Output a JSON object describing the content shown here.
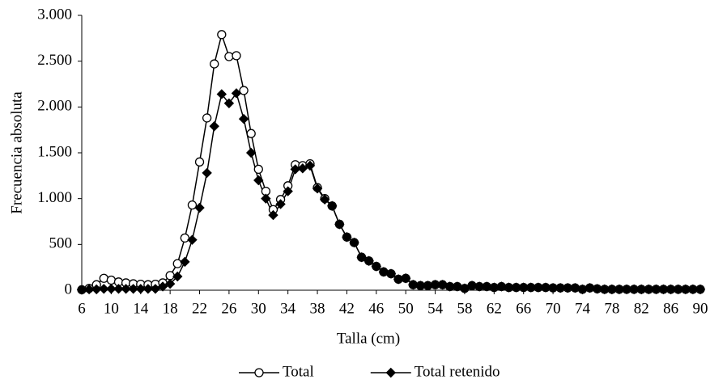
{
  "chart_data": {
    "type": "line",
    "x_label": "Talla (cm)",
    "y_label": "Frecuencia absoluta",
    "x": [
      6,
      7,
      8,
      9,
      10,
      11,
      12,
      13,
      14,
      15,
      16,
      17,
      18,
      19,
      20,
      21,
      22,
      23,
      24,
      25,
      26,
      27,
      28,
      29,
      30,
      31,
      32,
      33,
      34,
      35,
      36,
      37,
      38,
      39,
      40,
      41,
      42,
      43,
      44,
      45,
      46,
      47,
      48,
      49,
      50,
      51,
      52,
      53,
      54,
      55,
      56,
      57,
      58,
      59,
      60,
      61,
      62,
      63,
      64,
      65,
      66,
      67,
      68,
      69,
      70,
      71,
      72,
      73,
      74,
      75,
      76,
      77,
      78,
      79,
      80,
      81,
      82,
      83,
      84,
      85,
      86,
      87,
      88,
      89,
      90
    ],
    "series": [
      {
        "name": "Total",
        "color": "#000000",
        "marker": "circle",
        "values": [
          5,
          20,
          60,
          130,
          110,
          90,
          80,
          70,
          65,
          60,
          65,
          80,
          160,
          290,
          570,
          930,
          1400,
          1880,
          2470,
          2790,
          2550,
          2560,
          2180,
          1710,
          1320,
          1080,
          880,
          990,
          1140,
          1370,
          1360,
          1380,
          1120,
          1000,
          920,
          720,
          580,
          520,
          360,
          320,
          260,
          200,
          180,
          120,
          130,
          60,
          50,
          50,
          60,
          60,
          40,
          40,
          20,
          50,
          40,
          40,
          30,
          40,
          30,
          30,
          30,
          30,
          30,
          30,
          25,
          25,
          25,
          25,
          10,
          25,
          15,
          10,
          10,
          10,
          10,
          10,
          10,
          10,
          10,
          10,
          10,
          10,
          10,
          10,
          10
        ]
      },
      {
        "name": "Total retenido",
        "color": "#000000",
        "marker": "diamond",
        "values": [
          5,
          10,
          10,
          15,
          15,
          15,
          15,
          15,
          15,
          15,
          15,
          40,
          70,
          150,
          310,
          550,
          900,
          1280,
          1790,
          2140,
          2040,
          2150,
          1870,
          1500,
          1200,
          1000,
          820,
          940,
          1080,
          1320,
          1330,
          1360,
          1110,
          990,
          920,
          720,
          580,
          520,
          360,
          320,
          260,
          200,
          180,
          120,
          130,
          60,
          50,
          50,
          60,
          60,
          40,
          40,
          20,
          50,
          40,
          40,
          30,
          40,
          30,
          30,
          30,
          30,
          30,
          30,
          25,
          25,
          25,
          25,
          10,
          25,
          15,
          10,
          10,
          10,
          10,
          10,
          10,
          10,
          10,
          10,
          10,
          10,
          10,
          10,
          10
        ]
      }
    ],
    "xlim": [
      6,
      90
    ],
    "xticks": [
      6,
      10,
      14,
      18,
      22,
      26,
      30,
      34,
      38,
      42,
      46,
      50,
      54,
      58,
      62,
      66,
      70,
      74,
      78,
      82,
      86,
      90
    ],
    "ylim": [
      0,
      3000
    ],
    "yticks": [
      0,
      500,
      {
        "value": 1000,
        "label": "1.000"
      },
      {
        "value": 1500,
        "label": "1.500"
      },
      {
        "value": 2000,
        "label": "2.000"
      },
      {
        "value": 2500,
        "label": "2.500"
      },
      {
        "value": 3000,
        "label": "3.000"
      }
    ],
    "grid": false,
    "legend": "bottom"
  }
}
